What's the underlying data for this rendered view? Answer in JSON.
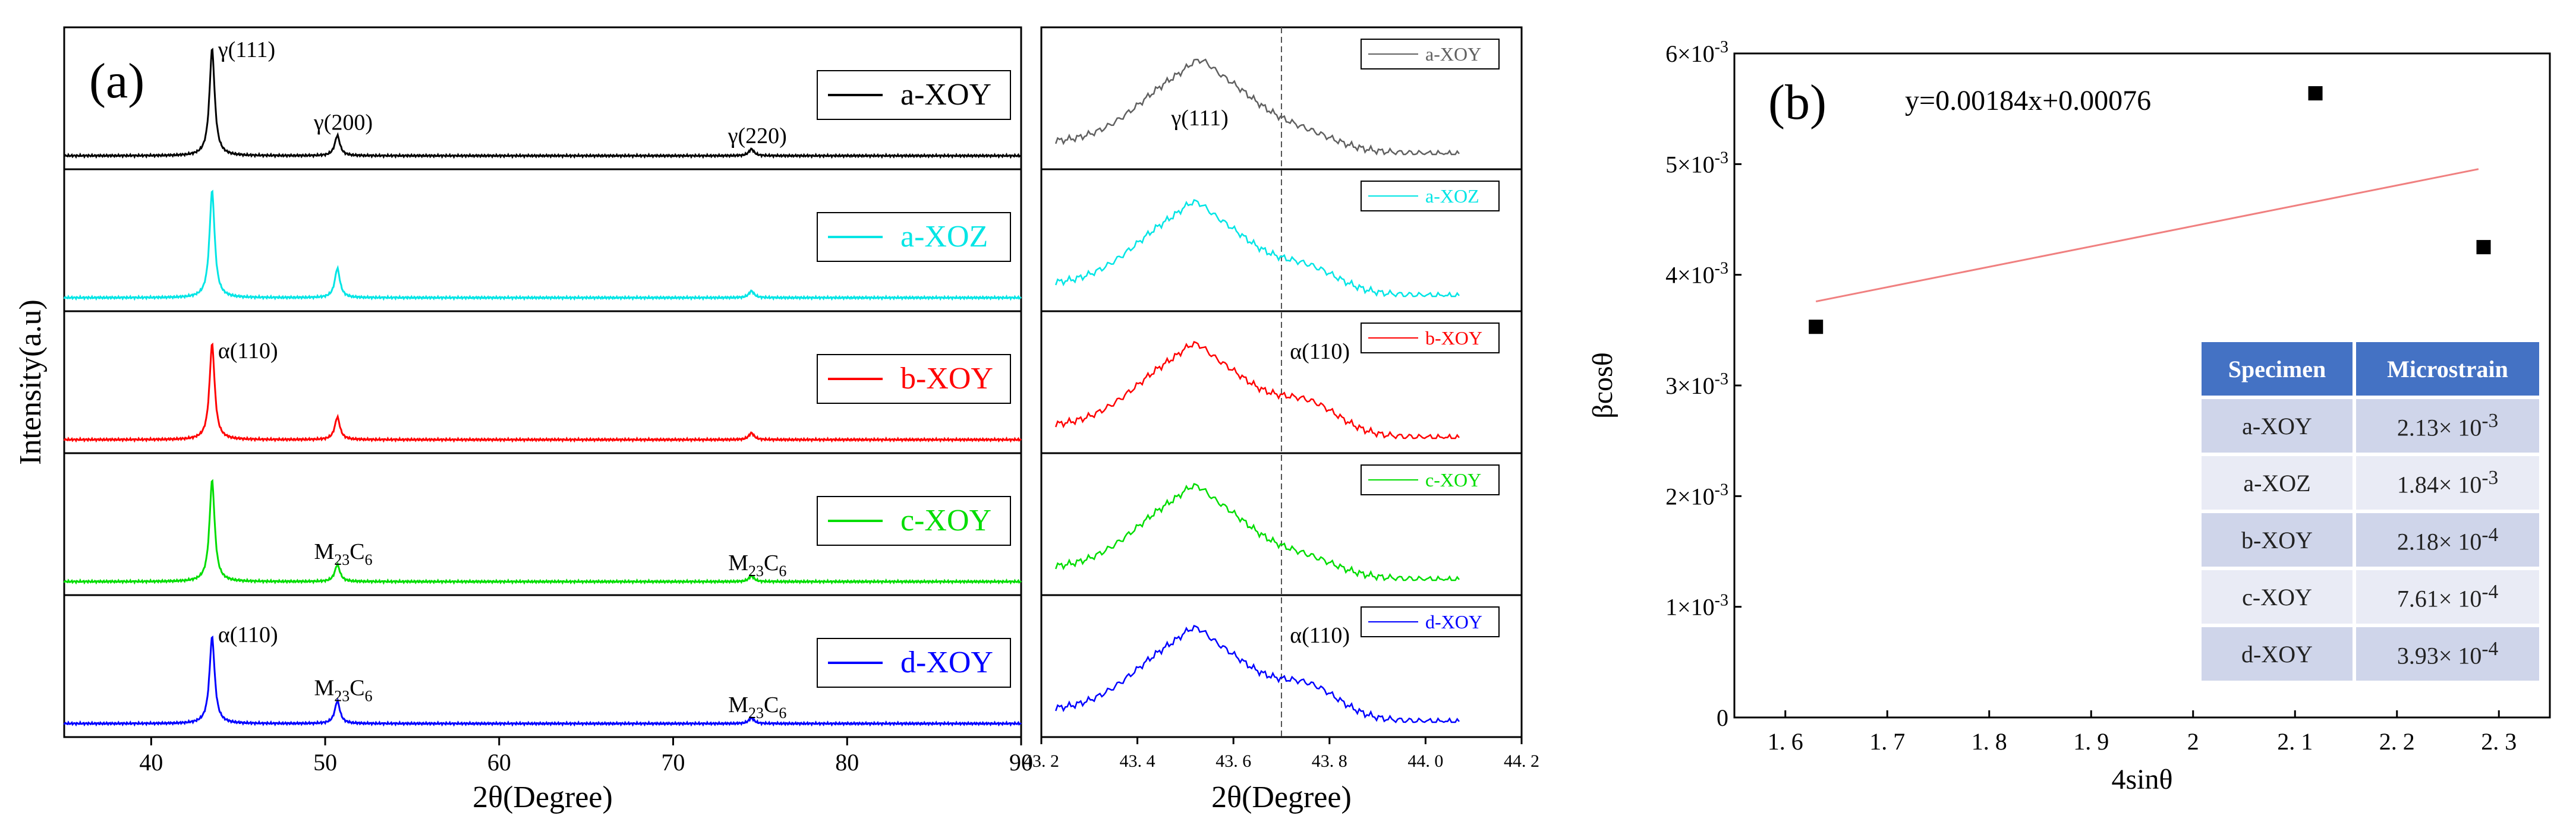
{
  "chart_data": [
    {
      "id": "a_main",
      "type": "line",
      "panel_label": "(a)",
      "xlabel": "2θ(Degree)",
      "ylabel": "Intensity(a.u)",
      "xlim": [
        35,
        90
      ],
      "xticks": [
        40,
        50,
        60,
        70,
        80,
        90
      ],
      "yticks_shown": false,
      "colors": [
        "#000000",
        "#00e5e5",
        "#ff0000",
        "#00dd00",
        "#0000ff"
      ],
      "series": [
        {
          "name": "a-XOY",
          "color": "#000000",
          "peaks": [
            {
              "x": 43.5,
              "h": 0.95
            },
            {
              "x": 50.7,
              "h": 0.18
            },
            {
              "x": 74.5,
              "h": 0.06
            }
          ]
        },
        {
          "name": "a-XOZ",
          "color": "#00e5e5",
          "peaks": [
            {
              "x": 43.5,
              "h": 0.95
            },
            {
              "x": 50.7,
              "h": 0.26
            },
            {
              "x": 74.5,
              "h": 0.06
            }
          ]
        },
        {
          "name": "b-XOY",
          "color": "#ff0000",
          "peaks": [
            {
              "x": 43.5,
              "h": 0.85
            },
            {
              "x": 50.7,
              "h": 0.2
            },
            {
              "x": 74.5,
              "h": 0.06
            }
          ]
        },
        {
          "name": "c-XOY",
          "color": "#00dd00",
          "peaks": [
            {
              "x": 43.5,
              "h": 0.9
            },
            {
              "x": 50.7,
              "h": 0.15
            },
            {
              "x": 74.5,
              "h": 0.05
            }
          ]
        },
        {
          "name": "d-XOY",
          "color": "#0000ff",
          "peaks": [
            {
              "x": 43.5,
              "h": 0.77
            },
            {
              "x": 50.7,
              "h": 0.2
            },
            {
              "x": 74.5,
              "h": 0.05
            }
          ]
        }
      ],
      "annotations": [
        {
          "panel": 0,
          "text": "γ(111)",
          "x": 43.5
        },
        {
          "panel": 0,
          "text": "γ(200)",
          "x": 50.7
        },
        {
          "panel": 0,
          "text": "γ(220)",
          "x": 74.5
        },
        {
          "panel": 2,
          "text": "α(110)",
          "x": 43.5
        },
        {
          "panel": 3,
          "text": "M",
          "sub": "23",
          "text2": "C",
          "sub2": "6",
          "x": 50.7
        },
        {
          "panel": 3,
          "text": "M",
          "sub": "23",
          "text2": "C",
          "sub2": "6",
          "x": 74.5
        },
        {
          "panel": 4,
          "text": "α(110)",
          "x": 43.5
        },
        {
          "panel": 4,
          "text": "M",
          "sub": "23",
          "text2": "C",
          "sub2": "6",
          "x": 50.7
        },
        {
          "panel": 4,
          "text": "M",
          "sub": "23",
          "text2": "C",
          "sub2": "6",
          "x": 74.5
        }
      ]
    },
    {
      "id": "a_zoom",
      "type": "line",
      "xlabel": "2θ(Degree)",
      "xlim": [
        43.2,
        44.2
      ],
      "xticks": [
        43.2,
        43.4,
        43.6,
        43.8,
        44.0,
        44.2
      ],
      "reference_line_x": 43.7,
      "series": [
        {
          "name": "a-XOY",
          "color": "#606060",
          "peak_center": 43.53,
          "shoulder": 0.25,
          "annotation": "γ(111)"
        },
        {
          "name": "a-XOZ",
          "color": "#00e5e5",
          "peak_center": 43.52,
          "shoulder": 0.45,
          "annotation": ""
        },
        {
          "name": "b-XOY",
          "color": "#ff0000",
          "peak_center": 43.52,
          "shoulder": 0.6,
          "annotation": "α(110)"
        },
        {
          "name": "c-XOY",
          "color": "#00dd00",
          "peak_center": 43.52,
          "shoulder": 0.3,
          "annotation": ""
        },
        {
          "name": "d-XOY",
          "color": "#0000ff",
          "peak_center": 43.52,
          "shoulder": 0.62,
          "annotation": "α(110)"
        }
      ]
    },
    {
      "id": "b",
      "type": "scatter",
      "panel_label": "(b)",
      "title": "",
      "xlabel": "4sinθ",
      "ylabel": "βcosθ",
      "xlim": [
        1.55,
        2.35
      ],
      "ylim": [
        0,
        0.006
      ],
      "xticks": [
        1.6,
        1.7,
        1.8,
        1.9,
        2.0,
        2.1,
        2.2,
        2.3
      ],
      "xtick_labels": [
        "1. 6",
        "1. 7",
        "1. 8",
        "1. 9",
        "2",
        "2. 1",
        "2. 2",
        "2. 3"
      ],
      "yticks": [
        {
          "v": 0,
          "mant": "0",
          "exp": ""
        },
        {
          "v": 0.001,
          "mant": "1×10",
          "exp": "-3"
        },
        {
          "v": 0.002,
          "mant": "2×10",
          "exp": "-3"
        },
        {
          "v": 0.003,
          "mant": "3×10",
          "exp": "-3"
        },
        {
          "v": 0.004,
          "mant": "4×10",
          "exp": "-3"
        },
        {
          "v": 0.005,
          "mant": "5×10",
          "exp": "-3"
        },
        {
          "v": 0.006,
          "mant": "6×10",
          "exp": "-3"
        }
      ],
      "points": [
        {
          "x": 1.63,
          "y": 0.00353
        },
        {
          "x": 2.12,
          "y": 0.00564
        },
        {
          "x": 2.285,
          "y": 0.00425
        }
      ],
      "fit": {
        "equation": "y=0.00184x+0.00076",
        "x0": 1.63,
        "x1": 2.28,
        "color": "#f08080"
      }
    }
  ],
  "table": {
    "headers": [
      "Specimen",
      "Microstrain"
    ],
    "rows": [
      {
        "specimen": "a-XOY",
        "value": "2.13× 10",
        "exp": "-3"
      },
      {
        "specimen": "a-XOZ",
        "value": "1.84× 10",
        "exp": "-3"
      },
      {
        "specimen": "b-XOY",
        "value": "2.18× 10",
        "exp": "-4"
      },
      {
        "specimen": "c-XOY",
        "value": "7.61× 10",
        "exp": "-4"
      },
      {
        "specimen": "d-XOY",
        "value": "3.93× 10",
        "exp": "-4"
      }
    ]
  }
}
